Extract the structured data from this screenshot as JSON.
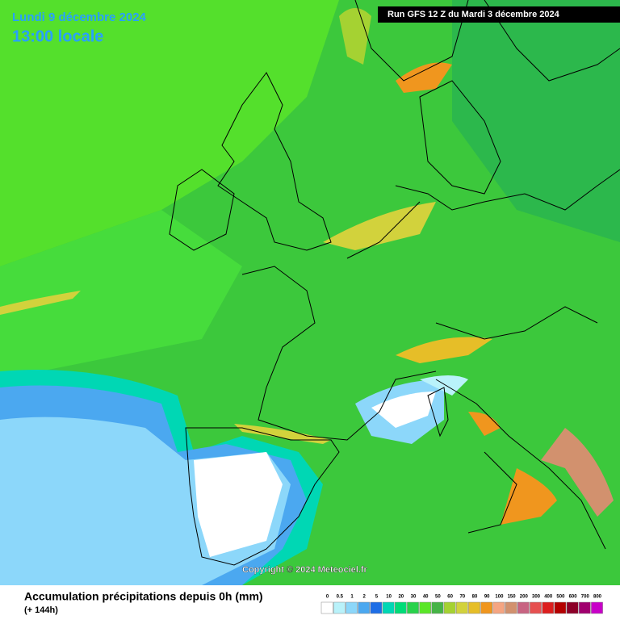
{
  "header": {
    "date": "Lundi 9 décembre 2024",
    "time": "13:00 locale",
    "run": "Run GFS 12 Z du Mardi 3 décembre 2024"
  },
  "copyright": "Copyright © 2024 Meteociel.fr",
  "legend": {
    "title": "Accumulation précipitations depuis 0h (mm)",
    "subtitle": "(+ 144h)",
    "items": [
      {
        "label": "0",
        "color": "#ffffff"
      },
      {
        "label": "0.5",
        "color": "#b9f2fa"
      },
      {
        "label": "1",
        "color": "#8cd7fa"
      },
      {
        "label": "2",
        "color": "#4ba8f0"
      },
      {
        "label": "5",
        "color": "#1e6ee6"
      },
      {
        "label": "10",
        "color": "#00d7b4"
      },
      {
        "label": "20",
        "color": "#00dc78"
      },
      {
        "label": "30",
        "color": "#28d24b"
      },
      {
        "label": "40",
        "color": "#5ae628"
      },
      {
        "label": "50",
        "color": "#46b446"
      },
      {
        "label": "60",
        "color": "#a5d232"
      },
      {
        "label": "70",
        "color": "#d2d23c"
      },
      {
        "label": "80",
        "color": "#e6be28"
      },
      {
        "label": "90",
        "color": "#f0961e"
      },
      {
        "label": "100",
        "color": "#f5a582"
      },
      {
        "label": "150",
        "color": "#d2916e"
      },
      {
        "label": "200",
        "color": "#c86482"
      },
      {
        "label": "300",
        "color": "#e65050"
      },
      {
        "label": "400",
        "color": "#dc1e1e"
      },
      {
        "label": "500",
        "color": "#b40000"
      },
      {
        "label": "600",
        "color": "#8c0028"
      },
      {
        "label": "700",
        "color": "#a0006e"
      },
      {
        "label": "800",
        "color": "#c800c8"
      }
    ]
  }
}
